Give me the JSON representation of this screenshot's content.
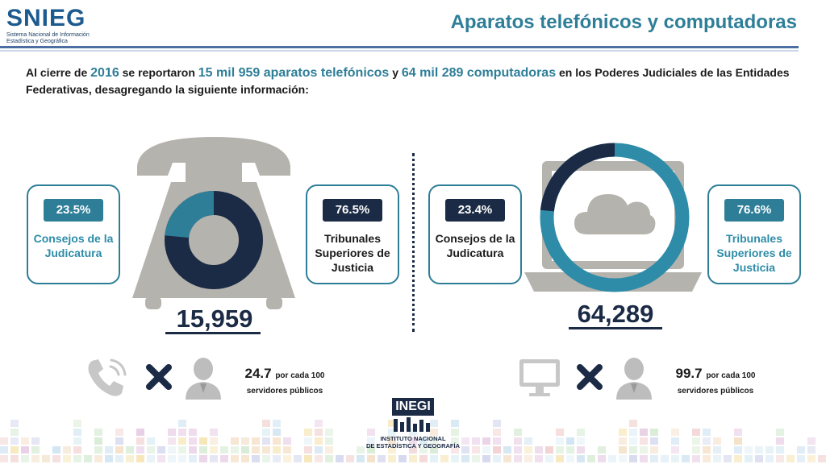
{
  "header": {
    "logo_word": "SNIEG",
    "logo_subtitle": "Sistema Nacional de Información Estadística y Geográfica",
    "title": "Aparatos telefónicos y computadoras"
  },
  "intro": {
    "t1": "Al cierre de ",
    "year": "2016",
    "t2": " se reportaron ",
    "phones": "15 mil 959 aparatos telefónicos",
    "t3": " y ",
    "computers": "64 mil 289 computadoras",
    "t4": " en los Poderes Judiciales de las Entidades Federativas, desagregando la siguiente información:"
  },
  "phones": {
    "total": "15,959",
    "left_card": {
      "pct": "23.5%",
      "label": "Consejos de la Judicatura",
      "value": 23.5
    },
    "right_card": {
      "pct": "76.5%",
      "label": "Tribunales Superiores de Justicia",
      "value": 76.5
    },
    "ratio": {
      "value": "24.7",
      "unit": "por cada 100",
      "sub": "servidores públicos"
    }
  },
  "computers": {
    "total": "64,289",
    "left_card": {
      "pct": "23.4%",
      "label": "Consejos de la Judicatura",
      "value": 23.4
    },
    "right_card": {
      "pct": "76.6%",
      "label": "Tribunales Superiores de Justicia",
      "value": 76.6
    },
    "ratio": {
      "value": "99.7",
      "unit": "por cada 100",
      "sub": "servidores públicos"
    }
  },
  "footer": {
    "logo_word": "INEGI",
    "logo_line1": "INSTITUTO NACIONAL",
    "logo_line2": "DE ESTADÍSTICA Y GEOGRAFÍA"
  },
  "colors": {
    "teal": "#2e7e98",
    "navy": "#1b2a45",
    "gray": "#b5b3ad",
    "teal_label": "#2e8ca8"
  },
  "icons": [
    "phone-handset-icon",
    "laptop-icon",
    "cloud-icon",
    "phone-ringing-icon",
    "monitor-icon",
    "multiply-icon",
    "person-icon"
  ]
}
